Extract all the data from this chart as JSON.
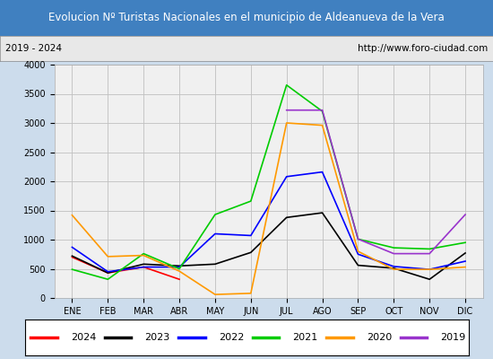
{
  "title": "Evolucion Nº Turistas Nacionales en el municipio de Aldeanueva de la Vera",
  "subtitle_left": "2019 - 2024",
  "subtitle_right": "http://www.foro-ciudad.com",
  "title_bg_color": "#4080c0",
  "title_text_color": "#ffffff",
  "months": [
    "ENE",
    "FEB",
    "MAR",
    "ABR",
    "MAY",
    "JUN",
    "JUL",
    "AGO",
    "SEP",
    "OCT",
    "NOV",
    "DIC"
  ],
  "ylim": [
    0,
    4000
  ],
  "yticks": [
    0,
    500,
    1000,
    1500,
    2000,
    2500,
    3000,
    3500,
    4000
  ],
  "series": {
    "2024": {
      "color": "#ff0000",
      "data": [
        700,
        430,
        530,
        320,
        null,
        null,
        null,
        null,
        null,
        null,
        null,
        null
      ]
    },
    "2023": {
      "color": "#000000",
      "data": [
        720,
        430,
        580,
        550,
        580,
        780,
        1380,
        1460,
        560,
        510,
        320,
        770
      ]
    },
    "2022": {
      "color": "#0000ff",
      "data": [
        870,
        450,
        530,
        530,
        1100,
        1070,
        2080,
        2160,
        750,
        540,
        490,
        630
      ]
    },
    "2021": {
      "color": "#00cc00",
      "data": [
        490,
        320,
        760,
        500,
        1430,
        1660,
        3650,
        3200,
        1010,
        860,
        840,
        950
      ]
    },
    "2020": {
      "color": "#ff9900",
      "data": [
        1420,
        710,
        730,
        460,
        60,
        80,
        3000,
        2960,
        800,
        490,
        490,
        530
      ]
    },
    "2019": {
      "color": "#9933cc",
      "data": [
        null,
        null,
        null,
        null,
        null,
        null,
        3220,
        3220,
        1010,
        760,
        760,
        1430
      ]
    }
  },
  "legend_order": [
    "2024",
    "2023",
    "2022",
    "2021",
    "2020",
    "2019"
  ],
  "fig_bg_color": "#ccdcec",
  "plot_bg_color": "#f0f0f0",
  "subtitle_bg_color": "#e8e8e8",
  "grid_color": "#c0c0c0",
  "border_color": "#4080c0"
}
